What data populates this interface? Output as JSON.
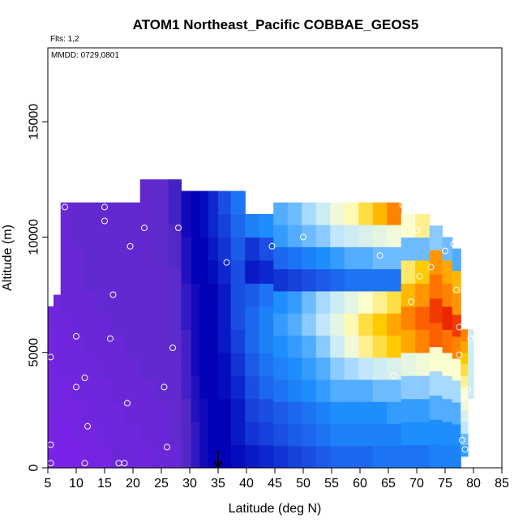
{
  "chart_data": {
    "type": "heatmap",
    "title": "ATOM1 Northeast_Pacific COBBAE_GEOS5",
    "annotations": {
      "flights": "Flts: 1,2",
      "dates": "MMDD: 0729,0801"
    },
    "xlabel": "Latitude (deg N)",
    "ylabel": "Altitude (m)",
    "xlim": [
      5,
      85
    ],
    "ylim": [
      0,
      18200
    ],
    "x_ticks": [
      5,
      10,
      15,
      20,
      25,
      30,
      35,
      40,
      45,
      50,
      55,
      60,
      65,
      70,
      75,
      80,
      85
    ],
    "y_ticks": [
      0,
      5000,
      10000,
      15000
    ],
    "grid": false,
    "colorscale": [
      "#7b22e8",
      "#5a2cc8",
      "#0000b8",
      "#1a4ae0",
      "#1e90ff",
      "#bfe6ff",
      "#ffffcc",
      "#ffcc00",
      "#ff6a00",
      "#e00000"
    ],
    "column_profiles": [
      {
        "lat": 5.5,
        "bottom": 0,
        "top": 7000,
        "values": [
          0.0,
          0.0,
          0.02,
          0.02,
          0.02,
          0.02,
          0.04
        ]
      },
      {
        "lat": 6.5,
        "bottom": 0,
        "top": 7500,
        "values": [
          0.0,
          0.02,
          0.02,
          0.04,
          0.04,
          0.04,
          0.04,
          0.04
        ]
      },
      {
        "lat": 8.0,
        "bottom": 0,
        "top": 11500,
        "values": [
          0.0,
          0.0,
          0.02,
          0.02,
          0.04,
          0.04,
          0.04,
          0.06,
          0.06,
          0.06,
          0.06,
          0.06
        ]
      },
      {
        "lat": 10.0,
        "bottom": 0,
        "top": 11500,
        "values": [
          0.0,
          0.02,
          0.02,
          0.04,
          0.04,
          0.04,
          0.06,
          0.06,
          0.06,
          0.06,
          0.08,
          0.08
        ]
      },
      {
        "lat": 12.5,
        "bottom": 0,
        "top": 11500,
        "values": [
          0.02,
          0.02,
          0.04,
          0.04,
          0.04,
          0.06,
          0.06,
          0.06,
          0.08,
          0.08,
          0.08,
          0.08
        ]
      },
      {
        "lat": 15.0,
        "bottom": 0,
        "top": 11500,
        "values": [
          0.02,
          0.04,
          0.04,
          0.04,
          0.06,
          0.06,
          0.06,
          0.08,
          0.08,
          0.08,
          0.08,
          0.08
        ]
      },
      {
        "lat": 17.5,
        "bottom": 0,
        "top": 11500,
        "values": [
          0.06,
          0.04,
          0.04,
          0.06,
          0.06,
          0.06,
          0.08,
          0.08,
          0.08,
          0.08,
          0.08,
          0.08
        ]
      },
      {
        "lat": 20.0,
        "bottom": 0,
        "top": 11500,
        "values": [
          0.04,
          0.04,
          0.06,
          0.06,
          0.06,
          0.08,
          0.08,
          0.08,
          0.08,
          0.08,
          0.08,
          0.08
        ]
      },
      {
        "lat": 22.5,
        "bottom": 0,
        "top": 12500,
        "values": [
          0.04,
          0.06,
          0.06,
          0.06,
          0.08,
          0.08,
          0.08,
          0.08,
          0.08,
          0.08,
          0.08,
          0.08,
          0.08
        ]
      },
      {
        "lat": 25.0,
        "bottom": 0,
        "top": 12500,
        "values": [
          0.06,
          0.06,
          0.06,
          0.08,
          0.08,
          0.08,
          0.08,
          0.08,
          0.08,
          0.1,
          0.1,
          0.1,
          0.1
        ]
      },
      {
        "lat": 27.5,
        "bottom": 0,
        "top": 12500,
        "values": [
          0.06,
          0.08,
          0.08,
          0.08,
          0.08,
          0.1,
          0.1,
          0.1,
          0.1,
          0.12,
          0.12,
          0.14,
          0.14
        ]
      },
      {
        "lat": 29.5,
        "bottom": 0,
        "top": 12000,
        "values": [
          0.12,
          0.12,
          0.12,
          0.14,
          0.14,
          0.14,
          0.16,
          0.16,
          0.18,
          0.18,
          0.2,
          0.2
        ]
      },
      {
        "lat": 31.0,
        "bottom": 0,
        "top": 12000,
        "values": [
          0.16,
          0.16,
          0.18,
          0.18,
          0.2,
          0.2,
          0.2,
          0.2,
          0.22,
          0.22,
          0.22,
          0.22
        ]
      },
      {
        "lat": 32.5,
        "bottom": 0,
        "top": 12000,
        "values": [
          0.2,
          0.2,
          0.2,
          0.22,
          0.22,
          0.22,
          0.22,
          0.22,
          0.22,
          0.22,
          0.24,
          0.24
        ]
      },
      {
        "lat": 34.0,
        "bottom": 0,
        "top": 12000,
        "values": [
          0.22,
          0.22,
          0.22,
          0.22,
          0.22,
          0.22,
          0.22,
          0.22,
          0.24,
          0.26,
          0.28,
          0.28
        ]
      },
      {
        "lat": 36.0,
        "bottom": 0,
        "top": 12000,
        "values": [
          0.22,
          0.22,
          0.22,
          0.24,
          0.24,
          0.26,
          0.26,
          0.26,
          0.28,
          0.3,
          0.32,
          0.34
        ]
      },
      {
        "lat": 38.5,
        "bottom": 0,
        "top": 12000,
        "values": [
          0.24,
          0.26,
          0.26,
          0.28,
          0.3,
          0.32,
          0.34,
          0.34,
          0.34,
          0.36,
          0.38,
          0.4
        ]
      },
      {
        "lat": 41.0,
        "bottom": 0,
        "top": 11000,
        "values": [
          0.26,
          0.3,
          0.32,
          0.34,
          0.36,
          0.38,
          0.38,
          0.36,
          0.26,
          0.3,
          0.42
        ]
      },
      {
        "lat": 43.5,
        "bottom": 0,
        "top": 11000,
        "values": [
          0.28,
          0.32,
          0.34,
          0.38,
          0.4,
          0.42,
          0.42,
          0.4,
          0.28,
          0.34,
          0.44
        ]
      },
      {
        "lat": 46.0,
        "bottom": 0,
        "top": 11500,
        "values": [
          0.3,
          0.34,
          0.36,
          0.4,
          0.42,
          0.44,
          0.46,
          0.44,
          0.3,
          0.38,
          0.46,
          0.48
        ]
      },
      {
        "lat": 48.5,
        "bottom": 0,
        "top": 11500,
        "values": [
          0.32,
          0.36,
          0.38,
          0.42,
          0.44,
          0.46,
          0.48,
          0.46,
          0.32,
          0.4,
          0.48,
          0.5
        ]
      },
      {
        "lat": 51.0,
        "bottom": 0,
        "top": 11500,
        "values": [
          0.34,
          0.38,
          0.4,
          0.44,
          0.46,
          0.48,
          0.52,
          0.5,
          0.34,
          0.42,
          0.5,
          0.54
        ]
      },
      {
        "lat": 53.5,
        "bottom": 0,
        "top": 11500,
        "values": [
          0.36,
          0.4,
          0.42,
          0.46,
          0.48,
          0.52,
          0.56,
          0.54,
          0.36,
          0.44,
          0.52,
          0.58
        ]
      },
      {
        "lat": 56.0,
        "bottom": 0,
        "top": 11500,
        "values": [
          0.38,
          0.42,
          0.44,
          0.48,
          0.52,
          0.58,
          0.62,
          0.58,
          0.38,
          0.46,
          0.56,
          0.64
        ]
      },
      {
        "lat": 58.5,
        "bottom": 0,
        "top": 11500,
        "values": [
          0.38,
          0.42,
          0.44,
          0.48,
          0.54,
          0.64,
          0.68,
          0.62,
          0.4,
          0.48,
          0.58,
          0.68
        ]
      },
      {
        "lat": 61.0,
        "bottom": 0,
        "top": 11500,
        "values": [
          0.38,
          0.42,
          0.44,
          0.48,
          0.56,
          0.7,
          0.74,
          0.66,
          0.4,
          0.48,
          0.6,
          0.74
        ]
      },
      {
        "lat": 63.5,
        "bottom": 0,
        "top": 11500,
        "values": [
          0.4,
          0.42,
          0.44,
          0.5,
          0.58,
          0.74,
          0.78,
          0.7,
          0.4,
          0.5,
          0.62,
          0.8
        ]
      },
      {
        "lat": 66.0,
        "bottom": 0,
        "top": 11500,
        "values": [
          0.4,
          0.42,
          0.46,
          0.5,
          0.6,
          0.78,
          0.82,
          0.74,
          0.4,
          0.5,
          0.64,
          0.86
        ]
      },
      {
        "lat": 68.5,
        "bottom": 0,
        "top": 11000,
        "values": [
          0.4,
          0.44,
          0.46,
          0.52,
          0.62,
          0.82,
          0.86,
          0.8,
          0.72,
          0.5,
          0.66
        ]
      },
      {
        "lat": 71.0,
        "bottom": 0,
        "top": 11000,
        "values": [
          0.4,
          0.44,
          0.46,
          0.52,
          0.64,
          0.86,
          0.9,
          0.84,
          0.78,
          0.5,
          0.7
        ]
      },
      {
        "lat": 73.5,
        "bottom": 0,
        "top": 10500,
        "values": [
          0.42,
          0.44,
          0.48,
          0.54,
          0.66,
          0.9,
          0.94,
          0.88,
          0.84,
          0.52
        ]
      },
      {
        "lat": 75.5,
        "bottom": 0,
        "top": 10000,
        "values": [
          0.42,
          0.44,
          0.48,
          0.54,
          0.66,
          0.88,
          0.96,
          0.86,
          0.82,
          0.5
        ]
      },
      {
        "lat": 77.0,
        "bottom": 0,
        "top": 9500,
        "values": [
          0.42,
          0.44,
          0.48,
          0.54,
          0.66,
          0.86,
          0.94,
          0.84,
          0.8,
          0.48
        ]
      },
      {
        "lat": 78.5,
        "bottom": 500,
        "top": 6000,
        "values": [
          0.46,
          0.5,
          0.56,
          0.6,
          0.64,
          0.66,
          0.7,
          0.74,
          0.78,
          0.82,
          0.86
        ]
      },
      {
        "lat": 79.5,
        "bottom": 3000,
        "top": 6000,
        "values": [
          0.58,
          0.58,
          0.58,
          0.58,
          0.58,
          0.58
        ]
      }
    ],
    "observations": [
      [
        5.5,
        4800
      ],
      [
        5.5,
        1000
      ],
      [
        5.5,
        200
      ],
      [
        8.0,
        11300
      ],
      [
        10.0,
        5700
      ],
      [
        10.0,
        3500
      ],
      [
        11.5,
        3900
      ],
      [
        11.5,
        200
      ],
      [
        12.0,
        1800
      ],
      [
        15.0,
        11300
      ],
      [
        15.0,
        10700
      ],
      [
        16.0,
        5600
      ],
      [
        16.5,
        7500
      ],
      [
        17.5,
        200
      ],
      [
        18.5,
        200
      ],
      [
        19.0,
        2800
      ],
      [
        19.5,
        9600
      ],
      [
        22.0,
        10400
      ],
      [
        25.5,
        3500
      ],
      [
        26.0,
        900
      ],
      [
        27.0,
        5200
      ],
      [
        27.5,
        12700
      ],
      [
        28.0,
        10400
      ],
      [
        36.5,
        8900
      ],
      [
        44.5,
        9600
      ],
      [
        50.0,
        10000
      ],
      [
        63.5,
        9200
      ],
      [
        66.0,
        4000
      ],
      [
        67.5,
        11400
      ],
      [
        69.0,
        7200
      ],
      [
        70.0,
        10300
      ],
      [
        70.5,
        8300
      ],
      [
        72.5,
        8700
      ],
      [
        75.0,
        9400
      ],
      [
        76.5,
        9700
      ],
      [
        77.0,
        7700
      ],
      [
        77.5,
        6100
      ],
      [
        77.5,
        4900
      ],
      [
        78.0,
        1200
      ],
      [
        78.5,
        800
      ],
      [
        78.5,
        3000
      ],
      [
        79.0,
        3400
      ],
      [
        79.5,
        5600
      ]
    ],
    "marker": {
      "lat": 35,
      "label": "arrow"
    }
  }
}
